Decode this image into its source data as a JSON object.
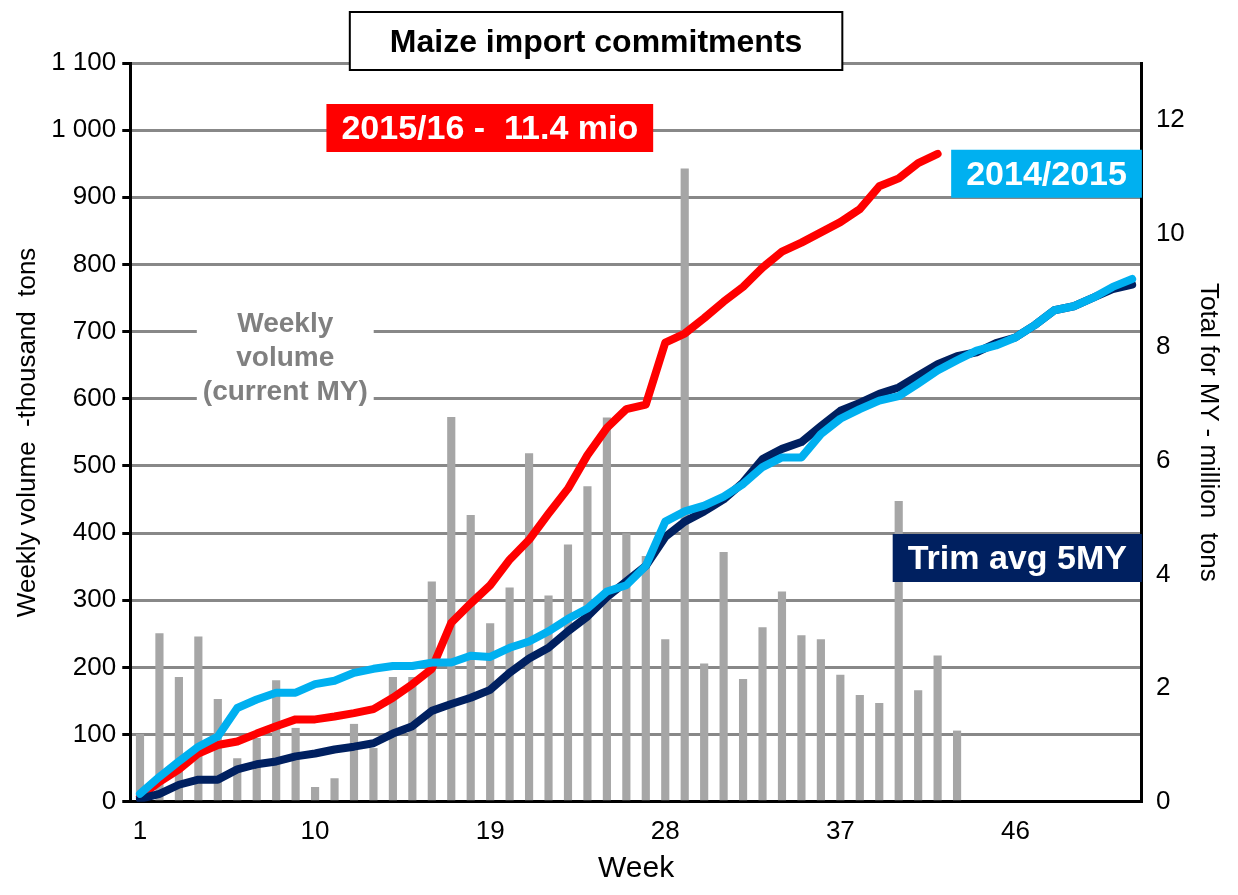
{
  "chart_data": {
    "type": "bar",
    "title": "Maize import commitments",
    "xlabel": "Week",
    "ylabel": "Weekly volume  -thousand  tons",
    "y2label": "Total for MY - million  tons",
    "categories": [
      "1",
      null,
      null,
      null,
      null,
      null,
      null,
      null,
      null,
      "10",
      null,
      null,
      null,
      null,
      null,
      null,
      null,
      null,
      "19",
      null,
      null,
      null,
      null,
      null,
      null,
      null,
      null,
      "28",
      null,
      null,
      null,
      null,
      null,
      null,
      null,
      null,
      "37",
      null,
      null,
      null,
      null,
      null,
      null,
      null,
      null,
      "46",
      null,
      null,
      null,
      null,
      null,
      null
    ],
    "ylim": [
      0,
      1100
    ],
    "yticks": [
      0,
      100,
      200,
      300,
      400,
      500,
      600,
      700,
      800,
      900,
      {
        "value": 1000,
        "label": "1 000"
      },
      {
        "value": 1100,
        "label": "1 100"
      }
    ],
    "y2lim": [
      0,
      13
    ],
    "y2ticks": [
      0,
      2,
      4,
      6,
      8,
      10,
      12
    ],
    "grid": "y",
    "legend": false,
    "series": [
      {
        "name": "Weekly volume (current MY)",
        "color": "#a6a6a6",
        "values": [
          101,
          251,
          186,
          246,
          153,
          65,
          95,
          181,
          110,
          22,
          35,
          116,
          80,
          186,
          186,
          328,
          573,
          427,
          266,
          319,
          519,
          307,
          383,
          470,
          572,
          400,
          366,
          242,
          943,
          206,
          372,
          183,
          260,
          313,
          248,
          242,
          189,
          159,
          147,
          448,
          166,
          218,
          106,
          null,
          null,
          null,
          null,
          null,
          null,
          null,
          null,
          null
        ]
      },
      {
        "name": "2015/16 -  11.4 mio",
        "type": "line",
        "axis": "y2",
        "color": "#ff0000",
        "values": [
          0.09,
          0.35,
          0.57,
          0.85,
          1.0,
          1.06,
          1.2,
          1.33,
          1.45,
          1.45,
          1.5,
          1.56,
          1.63,
          1.83,
          2.07,
          2.34,
          3.15,
          3.49,
          3.81,
          4.26,
          4.61,
          5.07,
          5.51,
          6.1,
          6.58,
          6.91,
          6.99,
          8.08,
          8.24,
          8.51,
          8.8,
          9.06,
          9.4,
          9.68,
          9.84,
          10.02,
          10.2,
          10.43,
          10.83,
          10.97,
          11.24,
          11.4,
          null,
          null,
          null,
          null,
          null,
          null,
          null,
          null,
          null,
          null
        ]
      },
      {
        "name": "Trim avg 5MY",
        "type": "line",
        "axis": "y2",
        "color": "#002060",
        "values": [
          0.05,
          0.14,
          0.3,
          0.39,
          0.39,
          0.57,
          0.66,
          0.71,
          0.8,
          0.85,
          0.92,
          0.97,
          1.03,
          1.2,
          1.33,
          1.6,
          1.72,
          1.83,
          1.97,
          2.27,
          2.52,
          2.71,
          3.0,
          3.26,
          3.6,
          3.88,
          4.15,
          4.66,
          4.93,
          5.11,
          5.32,
          5.62,
          6.03,
          6.21,
          6.33,
          6.61,
          6.88,
          7.02,
          7.18,
          7.29,
          7.5,
          7.7,
          7.84,
          7.91,
          8.07,
          8.17,
          8.39,
          8.65,
          8.72,
          8.87,
          9.02,
          9.1
        ]
      },
      {
        "name": "2014/2015",
        "type": "line",
        "axis": "y2",
        "color": "#00b0f0",
        "values": [
          0.14,
          0.44,
          0.71,
          0.97,
          1.15,
          1.65,
          1.8,
          1.92,
          1.92,
          2.07,
          2.13,
          2.27,
          2.34,
          2.39,
          2.39,
          2.45,
          2.45,
          2.57,
          2.55,
          2.71,
          2.82,
          3.0,
          3.22,
          3.4,
          3.7,
          3.81,
          4.15,
          4.93,
          5.11,
          5.21,
          5.37,
          5.59,
          5.89,
          6.06,
          6.06,
          6.47,
          6.74,
          6.91,
          7.06,
          7.14,
          7.36,
          7.59,
          7.77,
          7.94,
          8.03,
          8.17,
          8.39,
          8.65,
          8.72,
          8.87,
          9.06,
          9.2
        ]
      }
    ]
  }
}
